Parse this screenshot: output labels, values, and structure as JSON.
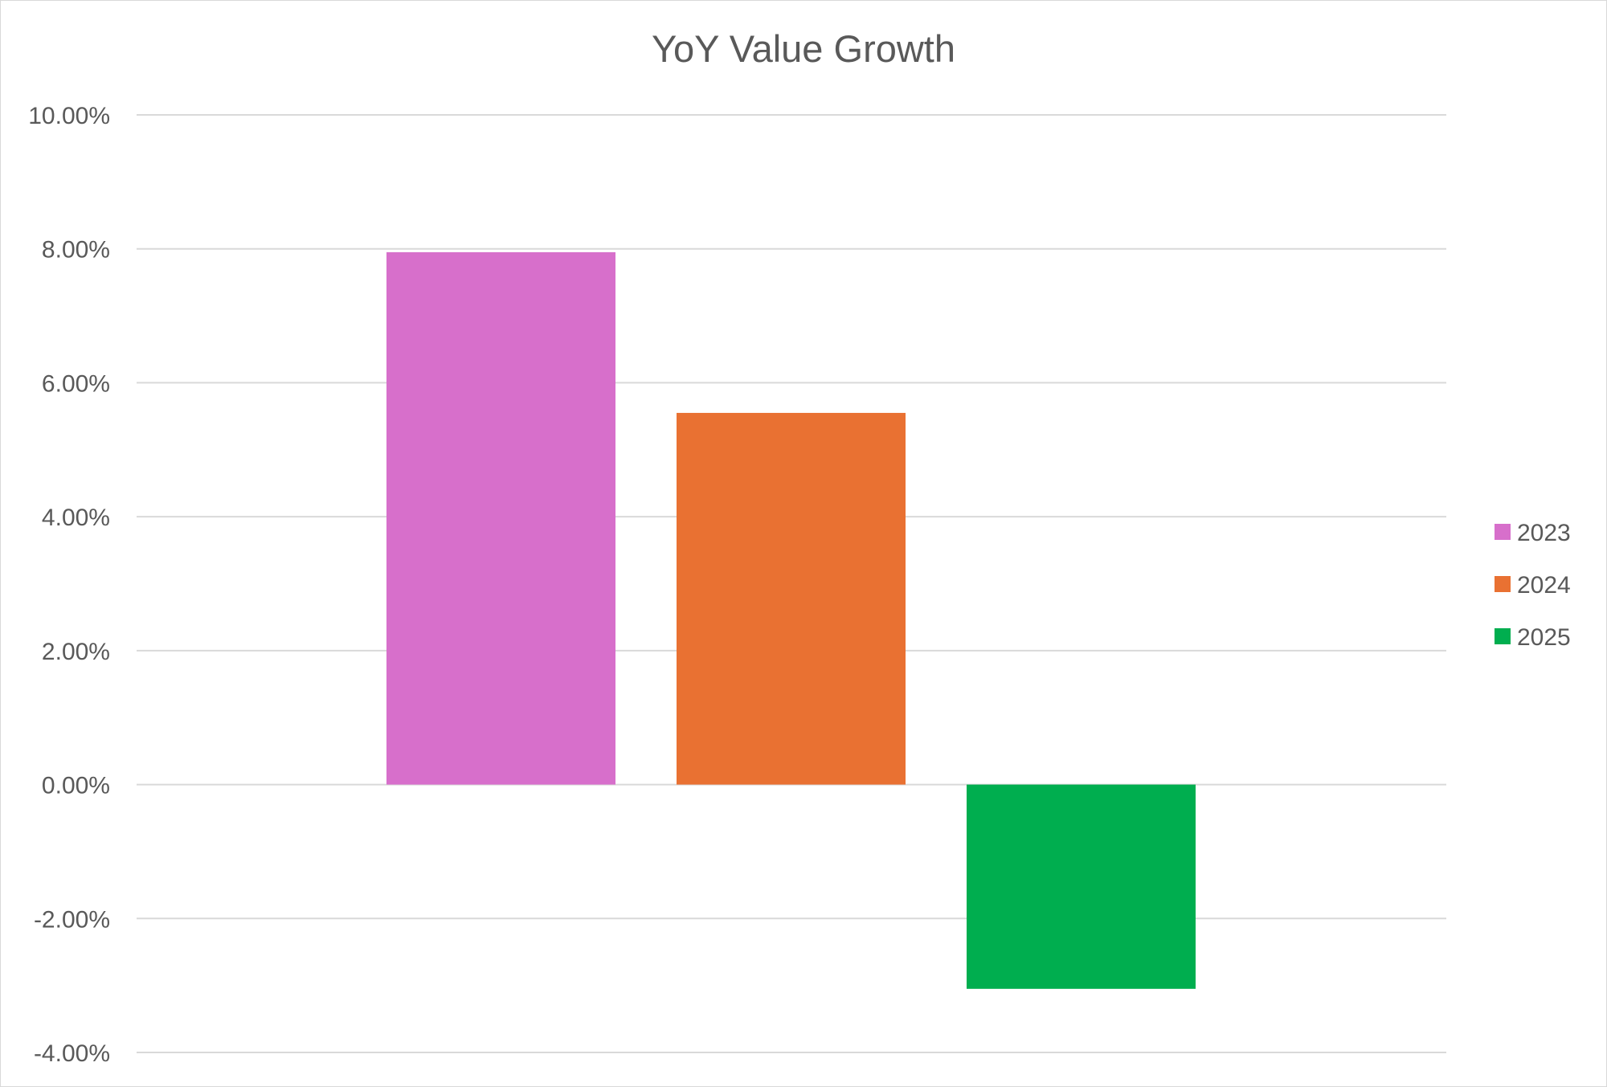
{
  "chart_data": {
    "type": "bar",
    "title": "YoY Value Growth",
    "xlabel": "",
    "ylabel": "",
    "ylim": [
      -4,
      10
    ],
    "y_tick_step": 2,
    "y_tick_format": "percent_2dp",
    "y_ticks": [
      "10.00%",
      "8.00%",
      "6.00%",
      "4.00%",
      "2.00%",
      "0.00%",
      "-2.00%",
      "-4.00%"
    ],
    "grid": true,
    "legend_position": "right",
    "series": [
      {
        "name": "2023",
        "values": [
          7.95
        ],
        "color": "#D76FCB"
      },
      {
        "name": "2024",
        "values": [
          5.55
        ],
        "color": "#E97132"
      },
      {
        "name": "2025",
        "values": [
          -3.05
        ],
        "color": "#00AE4F"
      }
    ]
  }
}
